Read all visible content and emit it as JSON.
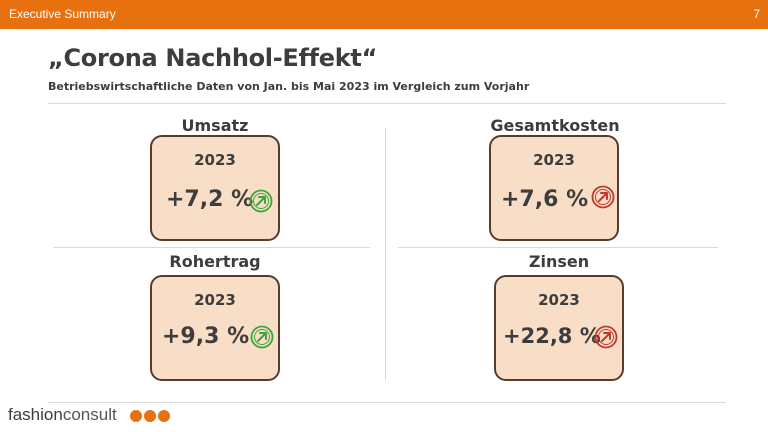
{
  "header": {
    "section": "Executive Summary",
    "page_number": "7",
    "accent_color": "#e8710f"
  },
  "slide": {
    "title": "„Corona Nachhol-Effekt“",
    "subtitle": "Betriebswirtschaftliche Daten von Jan. bis Mai 2023 im Vergleich zum Vorjahr"
  },
  "kpis": [
    {
      "label": "Umsatz",
      "year": "2023",
      "value": "+7,2 %",
      "trend_icon": "arrow-up-right-icon",
      "status_color": "#3aa53a"
    },
    {
      "label": "Gesamtkosten",
      "year": "2023",
      "value": "+7,6 %",
      "trend_icon": "arrow-up-right-icon",
      "status_color": "#c0392b"
    },
    {
      "label": "Rohertrag",
      "year": "2023",
      "value": "+9,3 %",
      "trend_icon": "arrow-up-right-icon",
      "status_color": "#3aa53a"
    },
    {
      "label": "Zinsen",
      "year": "2023",
      "value": "+22,8 %",
      "trend_icon": "arrow-up-right-icon",
      "status_color": "#c0392b"
    }
  ],
  "footer": {
    "logo_part1": "fashion",
    "logo_part2": "consult"
  }
}
